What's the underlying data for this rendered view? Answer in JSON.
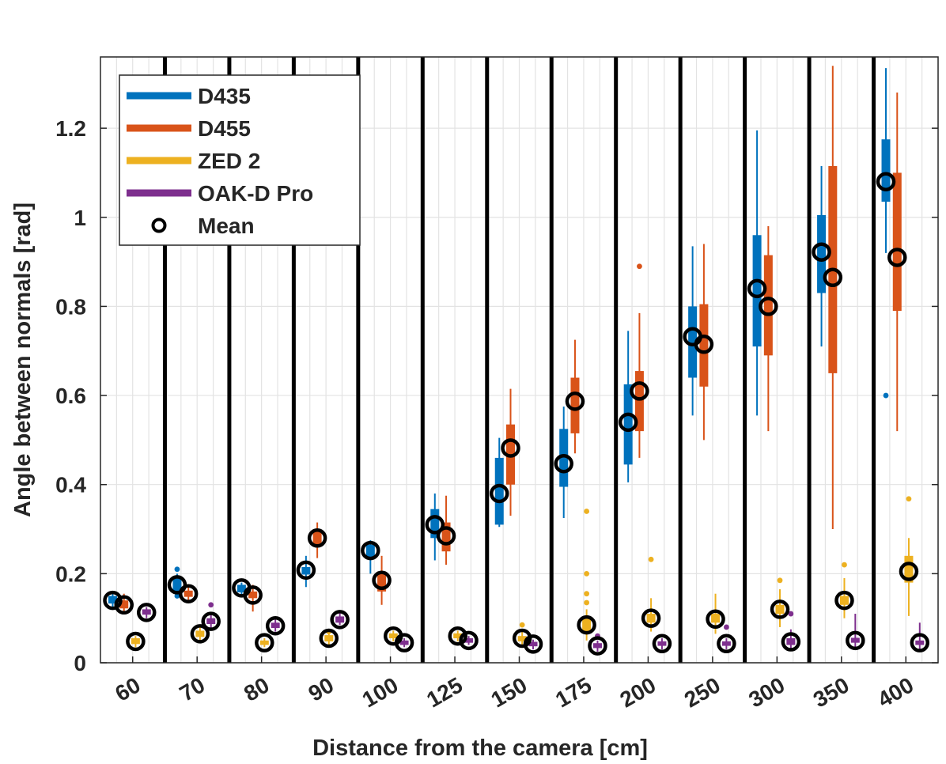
{
  "chart_data": {
    "type": "boxplot",
    "title": "",
    "xlabel": "Distance from the camera [cm]",
    "ylabel": "Angle between normals [rad]",
    "ylim": [
      0,
      1.36
    ],
    "yticks": [
      0,
      0.2,
      0.4,
      0.6,
      0.8,
      1,
      1.2
    ],
    "ytick_labels": [
      "0",
      "0.2",
      "0.4",
      "0.6",
      "0.8",
      "1",
      "1.2"
    ],
    "grid": true,
    "legend_position": "top-left",
    "categories": [
      "60",
      "70",
      "80",
      "90",
      "100",
      "125",
      "150",
      "175",
      "200",
      "250",
      "300",
      "350",
      "400"
    ],
    "legend": [
      {
        "name": "D435",
        "color": "#0072BD",
        "kind": "line"
      },
      {
        "name": "D455",
        "color": "#D95319",
        "kind": "line"
      },
      {
        "name": "ZED 2",
        "color": "#EDB120",
        "kind": "line"
      },
      {
        "name": "OAK-D Pro",
        "color": "#7E2F8E",
        "kind": "line"
      },
      {
        "name": "Mean",
        "color": "#000000",
        "kind": "circle"
      }
    ],
    "series": [
      {
        "name": "D435",
        "color": "#0072BD",
        "mean": [
          0.14,
          0.175,
          0.168,
          0.208,
          0.252,
          0.31,
          0.38,
          0.447,
          0.54,
          0.732,
          0.84,
          0.922,
          1.08
        ],
        "q1": [
          0.133,
          0.16,
          0.158,
          0.198,
          0.235,
          0.28,
          0.31,
          0.395,
          0.445,
          0.64,
          0.71,
          0.83,
          1.035
        ],
        "q3": [
          0.15,
          0.19,
          0.175,
          0.215,
          0.265,
          0.345,
          0.46,
          0.525,
          0.625,
          0.8,
          0.96,
          1.005,
          1.175
        ],
        "wlow": [
          0.125,
          0.15,
          0.15,
          0.17,
          0.2,
          0.23,
          0.305,
          0.325,
          0.405,
          0.555,
          0.555,
          0.71,
          0.92
        ],
        "whigh": [
          0.16,
          0.2,
          0.18,
          0.24,
          0.275,
          0.38,
          0.505,
          0.575,
          0.745,
          0.935,
          1.195,
          1.115,
          1.335
        ],
        "outliers": [
          [],
          [
            0.21,
            0.15
          ],
          [],
          [],
          [],
          [],
          [],
          [],
          [],
          [],
          [],
          [],
          [
            0.6
          ]
        ]
      },
      {
        "name": "D455",
        "color": "#D95319",
        "mean": [
          0.13,
          0.155,
          0.152,
          0.28,
          0.185,
          0.285,
          0.482,
          0.587,
          0.61,
          0.715,
          0.8,
          0.865,
          0.91
        ],
        "q1": [
          0.122,
          0.148,
          0.145,
          0.265,
          0.16,
          0.25,
          0.4,
          0.515,
          0.52,
          0.62,
          0.69,
          0.65,
          0.79
        ],
        "q3": [
          0.14,
          0.162,
          0.16,
          0.295,
          0.205,
          0.315,
          0.535,
          0.64,
          0.655,
          0.805,
          0.915,
          1.115,
          1.1
        ],
        "wlow": [
          0.11,
          0.14,
          0.115,
          0.235,
          0.13,
          0.22,
          0.33,
          0.47,
          0.46,
          0.5,
          0.52,
          0.3,
          0.52
        ],
        "whigh": [
          0.155,
          0.17,
          0.175,
          0.315,
          0.24,
          0.375,
          0.615,
          0.725,
          0.785,
          0.94,
          0.98,
          1.34,
          1.28
        ],
        "outliers": [
          [],
          [],
          [],
          [],
          [],
          [],
          [],
          [],
          [
            0.89
          ],
          [],
          [],
          [],
          []
        ]
      },
      {
        "name": "ZED 2",
        "color": "#EDB120",
        "mean": [
          0.048,
          0.065,
          0.045,
          0.055,
          0.06,
          0.06,
          0.055,
          0.085,
          0.1,
          0.098,
          0.12,
          0.14,
          0.205
        ],
        "q1": [
          0.042,
          0.058,
          0.04,
          0.048,
          0.055,
          0.055,
          0.048,
          0.07,
          0.09,
          0.09,
          0.11,
          0.13,
          0.18
        ],
        "q3": [
          0.055,
          0.072,
          0.05,
          0.062,
          0.066,
          0.066,
          0.06,
          0.1,
          0.11,
          0.11,
          0.13,
          0.15,
          0.24
        ],
        "wlow": [
          0.035,
          0.05,
          0.035,
          0.04,
          0.048,
          0.048,
          0.04,
          0.05,
          0.07,
          0.065,
          0.08,
          0.1,
          0.105
        ],
        "whigh": [
          0.06,
          0.08,
          0.055,
          0.075,
          0.072,
          0.072,
          0.075,
          0.12,
          0.145,
          0.155,
          0.165,
          0.19,
          0.28
        ],
        "outliers": [
          [],
          [],
          [],
          [
            0.07
          ],
          [],
          [],
          [
            0.085
          ],
          [
            0.34,
            0.2,
            0.155,
            0.135
          ],
          [
            0.232
          ],
          [],
          [
            0.185
          ],
          [
            0.22
          ],
          [
            0.368
          ]
        ]
      },
      {
        "name": "OAK-D Pro",
        "color": "#7E2F8E",
        "mean": [
          0.113,
          0.093,
          0.083,
          0.097,
          0.045,
          0.05,
          0.042,
          0.038,
          0.043,
          0.043,
          0.047,
          0.05,
          0.045
        ],
        "q1": [
          0.108,
          0.087,
          0.078,
          0.09,
          0.04,
          0.045,
          0.037,
          0.033,
          0.038,
          0.038,
          0.04,
          0.045,
          0.04
        ],
        "q3": [
          0.12,
          0.1,
          0.09,
          0.104,
          0.05,
          0.055,
          0.047,
          0.044,
          0.048,
          0.048,
          0.055,
          0.056,
          0.05
        ],
        "wlow": [
          0.1,
          0.075,
          0.07,
          0.085,
          0.035,
          0.04,
          0.03,
          0.025,
          0.03,
          0.03,
          0.032,
          0.035,
          0.03
        ],
        "whigh": [
          0.125,
          0.11,
          0.097,
          0.112,
          0.055,
          0.06,
          0.052,
          0.05,
          0.055,
          0.055,
          0.075,
          0.11,
          0.09
        ],
        "outliers": [
          [],
          [
            0.13
          ],
          [],
          [],
          [],
          [],
          [],
          [
            0.06
          ],
          [],
          [
            0.08
          ],
          [
            0.11
          ],
          [],
          []
        ]
      }
    ]
  }
}
